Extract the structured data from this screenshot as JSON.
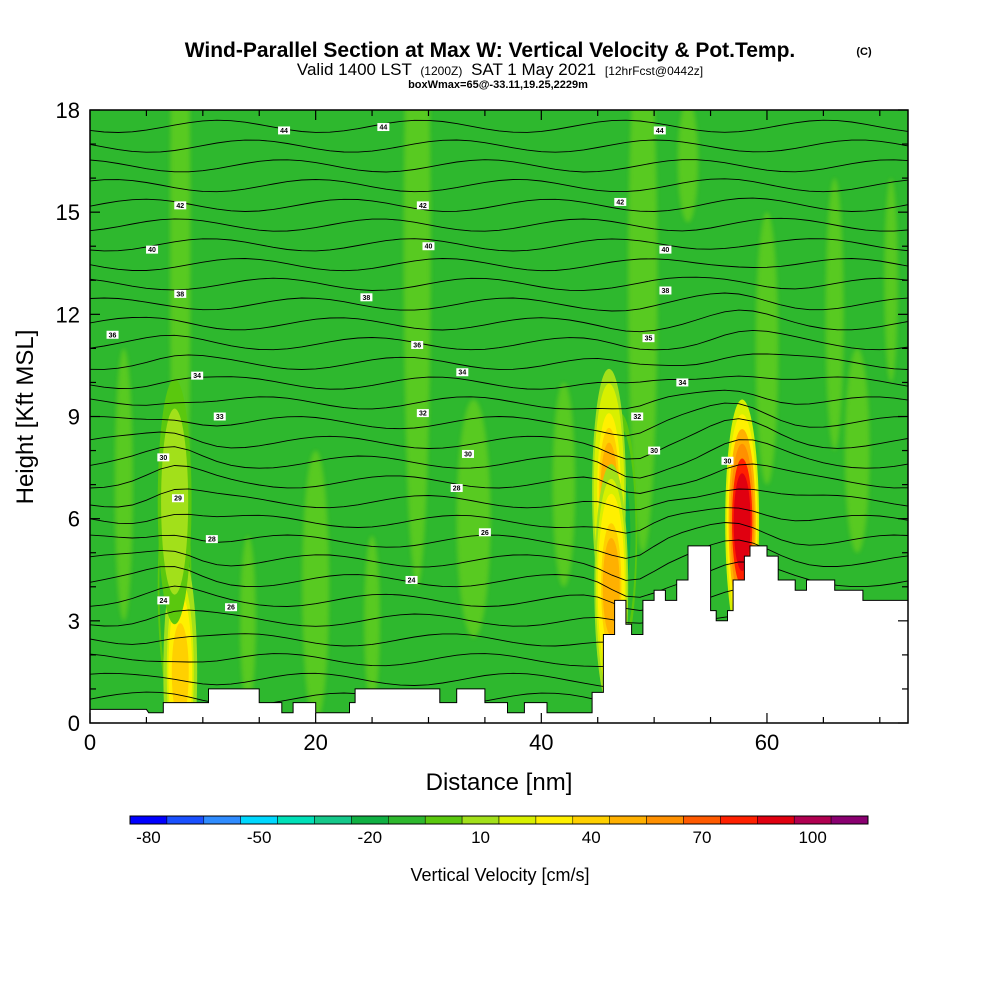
{
  "chart_data": {
    "type": "heatmap",
    "title": "Wind-Parallel Section at Max W: Vertical Velocity & Pot.Temp.",
    "title_mark": "(C)",
    "subtitle_valid": "Valid 1400 LST",
    "subtitle_utc": "(1200Z)",
    "subtitle_date": "SAT 1 May 2021",
    "subtitle_fcst": "[12hrFcst@0442z]",
    "info_line": "boxWmax=65@-33.11,19.25,2229m",
    "xlabel": "Distance [nm]",
    "ylabel": "Height [Kft MSL]",
    "xlim": [
      0,
      72.5
    ],
    "ylim": [
      0,
      18
    ],
    "x_ticks": [
      0,
      20,
      40,
      60
    ],
    "y_ticks": [
      0,
      3,
      6,
      9,
      12,
      15,
      18
    ],
    "background_value_cms": 0,
    "updraft_cells": [
      {
        "name": "mountain-updraft",
        "x": 57.8,
        "z": 5.9,
        "peak_cms": 105
      },
      {
        "name": "ridge-updraft",
        "x": 46.0,
        "z": 6.8,
        "peak_cms": 55
      },
      {
        "name": "ridge-lower-updraft",
        "x": 46.2,
        "z": 4.0,
        "peak_cms": 60
      },
      {
        "name": "left-updraft-low",
        "x": 8.0,
        "z": 1.5,
        "peak_cms": 45
      },
      {
        "name": "left-updraft-mid",
        "x": 7.5,
        "z": 6.5,
        "peak_cms": 15
      }
    ],
    "downdraft_cells": [
      {
        "name": "ridge-downdraft",
        "x": 47.0,
        "z": 5.5,
        "min_cms": -25
      },
      {
        "name": "left-downdraft",
        "x": 7.5,
        "z": 4.0,
        "min_cms": -22
      }
    ],
    "terrain_kft": [
      [
        0,
        0.4
      ],
      [
        5,
        0.4
      ],
      [
        5.2,
        0.3
      ],
      [
        6.5,
        0.3
      ],
      [
        6.5,
        0.6
      ],
      [
        10.5,
        0.6
      ],
      [
        10.5,
        1.0
      ],
      [
        15,
        1.0
      ],
      [
        15,
        0.6
      ],
      [
        17,
        0.6
      ],
      [
        17,
        0.3
      ],
      [
        18,
        0.3
      ],
      [
        18,
        0.6
      ],
      [
        20,
        0.6
      ],
      [
        20,
        0.3
      ],
      [
        23,
        0.3
      ],
      [
        23,
        0.6
      ],
      [
        23.5,
        0.6
      ],
      [
        23.5,
        1.0
      ],
      [
        31,
        1.0
      ],
      [
        31,
        0.6
      ],
      [
        32.5,
        0.6
      ],
      [
        32.5,
        1.0
      ],
      [
        35,
        1.0
      ],
      [
        35,
        0.6
      ],
      [
        37,
        0.6
      ],
      [
        37,
        0.3
      ],
      [
        38.5,
        0.3
      ],
      [
        38.5,
        0.6
      ],
      [
        40.5,
        0.6
      ],
      [
        40.5,
        0.3
      ],
      [
        44.5,
        0.3
      ],
      [
        44.5,
        0.9
      ],
      [
        45.5,
        0.9
      ],
      [
        45.5,
        2.6
      ],
      [
        46.5,
        2.6
      ],
      [
        46.5,
        3.6
      ],
      [
        47.5,
        3.6
      ],
      [
        47.5,
        2.9
      ],
      [
        48,
        2.9
      ],
      [
        48,
        2.6
      ],
      [
        49,
        2.6
      ],
      [
        49,
        3.6
      ],
      [
        50,
        3.6
      ],
      [
        50,
        3.9
      ],
      [
        51,
        3.9
      ],
      [
        51,
        3.6
      ],
      [
        52,
        3.6
      ],
      [
        52,
        4.2
      ],
      [
        53,
        4.2
      ],
      [
        53,
        5.2
      ],
      [
        55,
        5.2
      ],
      [
        55,
        3.3
      ],
      [
        55.5,
        3.3
      ],
      [
        55.5,
        3.0
      ],
      [
        56.5,
        3.0
      ],
      [
        56.5,
        3.3
      ],
      [
        57,
        3.3
      ],
      [
        57,
        4.2
      ],
      [
        58,
        4.2
      ],
      [
        58,
        4.9
      ],
      [
        58.5,
        4.9
      ],
      [
        58.5,
        5.2
      ],
      [
        60,
        5.2
      ],
      [
        60,
        4.9
      ],
      [
        61,
        4.9
      ],
      [
        61,
        4.2
      ],
      [
        62.5,
        4.2
      ],
      [
        62.5,
        3.9
      ],
      [
        63.5,
        3.9
      ],
      [
        63.5,
        4.2
      ],
      [
        66,
        4.2
      ],
      [
        66,
        3.9
      ],
      [
        68.5,
        3.9
      ],
      [
        68.5,
        3.6
      ],
      [
        72.5,
        3.6
      ]
    ],
    "theta_contours_C": [
      {
        "value": "44",
        "x": 17.2,
        "z": 17.4
      },
      {
        "value": "44",
        "x": 26,
        "z": 17.5
      },
      {
        "value": "44",
        "x": 50.5,
        "z": 17.4
      },
      {
        "value": "42",
        "x": 8,
        "z": 15.2
      },
      {
        "value": "42",
        "x": 29.5,
        "z": 15.2
      },
      {
        "value": "42",
        "x": 47,
        "z": 15.3
      },
      {
        "value": "40",
        "x": 5.5,
        "z": 13.9
      },
      {
        "value": "40",
        "x": 30,
        "z": 14.0
      },
      {
        "value": "40",
        "x": 51,
        "z": 13.9
      },
      {
        "value": "38",
        "x": 8,
        "z": 12.6
      },
      {
        "value": "38",
        "x": 24.5,
        "z": 12.5
      },
      {
        "value": "38",
        "x": 51,
        "z": 12.7
      },
      {
        "value": "36",
        "x": 2,
        "z": 11.4
      },
      {
        "value": "36",
        "x": 29,
        "z": 11.1
      },
      {
        "value": "35",
        "x": 49.5,
        "z": 11.3
      },
      {
        "value": "34",
        "x": 9.5,
        "z": 10.2
      },
      {
        "value": "34",
        "x": 33,
        "z": 10.3
      },
      {
        "value": "34",
        "x": 52.5,
        "z": 10.0
      },
      {
        "value": "33",
        "x": 11.5,
        "z": 9.0
      },
      {
        "value": "32",
        "x": 29.5,
        "z": 9.1
      },
      {
        "value": "32",
        "x": 48.5,
        "z": 9.0
      },
      {
        "value": "30",
        "x": 6.5,
        "z": 7.8
      },
      {
        "value": "30",
        "x": 33.5,
        "z": 7.9
      },
      {
        "value": "30",
        "x": 50,
        "z": 8.0
      },
      {
        "value": "30",
        "x": 56.5,
        "z": 7.7
      },
      {
        "value": "29",
        "x": 7.8,
        "z": 6.6
      },
      {
        "value": "28",
        "x": 32.5,
        "z": 6.9
      },
      {
        "value": "28",
        "x": 10.8,
        "z": 5.4
      },
      {
        "value": "26",
        "x": 35,
        "z": 5.6
      },
      {
        "value": "24",
        "x": 6.5,
        "z": 3.6
      },
      {
        "value": "24",
        "x": 28.5,
        "z": 4.2
      },
      {
        "value": "26",
        "x": 12.5,
        "z": 3.4
      }
    ],
    "colorbar": {
      "title": "Vertical Velocity [cm/s]",
      "tick_labels": [
        "-80",
        "-50",
        "-20",
        "10",
        "40",
        "70",
        "100"
      ],
      "range": [
        -85,
        115
      ],
      "colors": [
        "#0000ff",
        "#1a50ff",
        "#2f8cff",
        "#00d8ff",
        "#00e0b8",
        "#15c88a",
        "#10b043",
        "#2eb82e",
        "#5ac80e",
        "#a2e01a",
        "#d8f000",
        "#fff000",
        "#ffd000",
        "#ffb000",
        "#ff9000",
        "#ff5a00",
        "#ff2000",
        "#e00010",
        "#b00050",
        "#8a0070"
      ]
    }
  }
}
